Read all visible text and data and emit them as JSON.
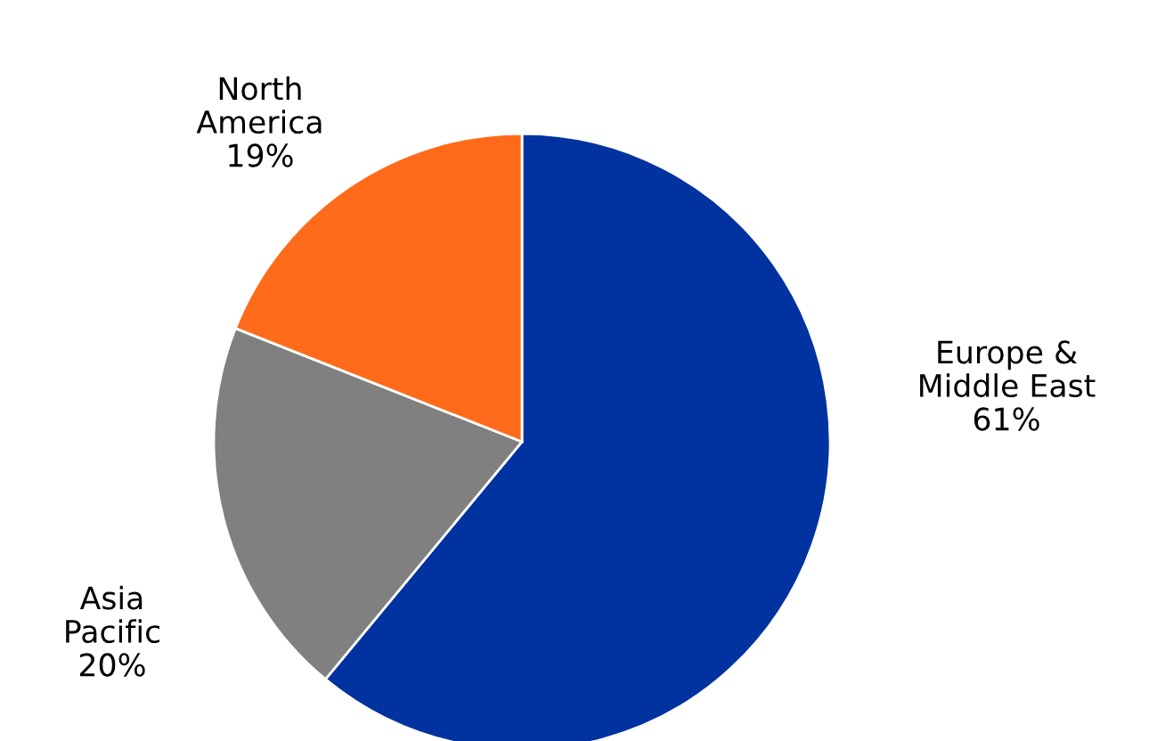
{
  "chart_data": {
    "type": "pie",
    "categories": [
      "Europe &\nMiddle East",
      "Asia\nPacific",
      "North\nAmerica"
    ],
    "values": [
      61,
      20,
      19
    ],
    "value_labels": [
      "61%",
      "20%",
      "19%"
    ],
    "colors": [
      "#0033a0",
      "#808080",
      "#ff6b1a"
    ]
  }
}
